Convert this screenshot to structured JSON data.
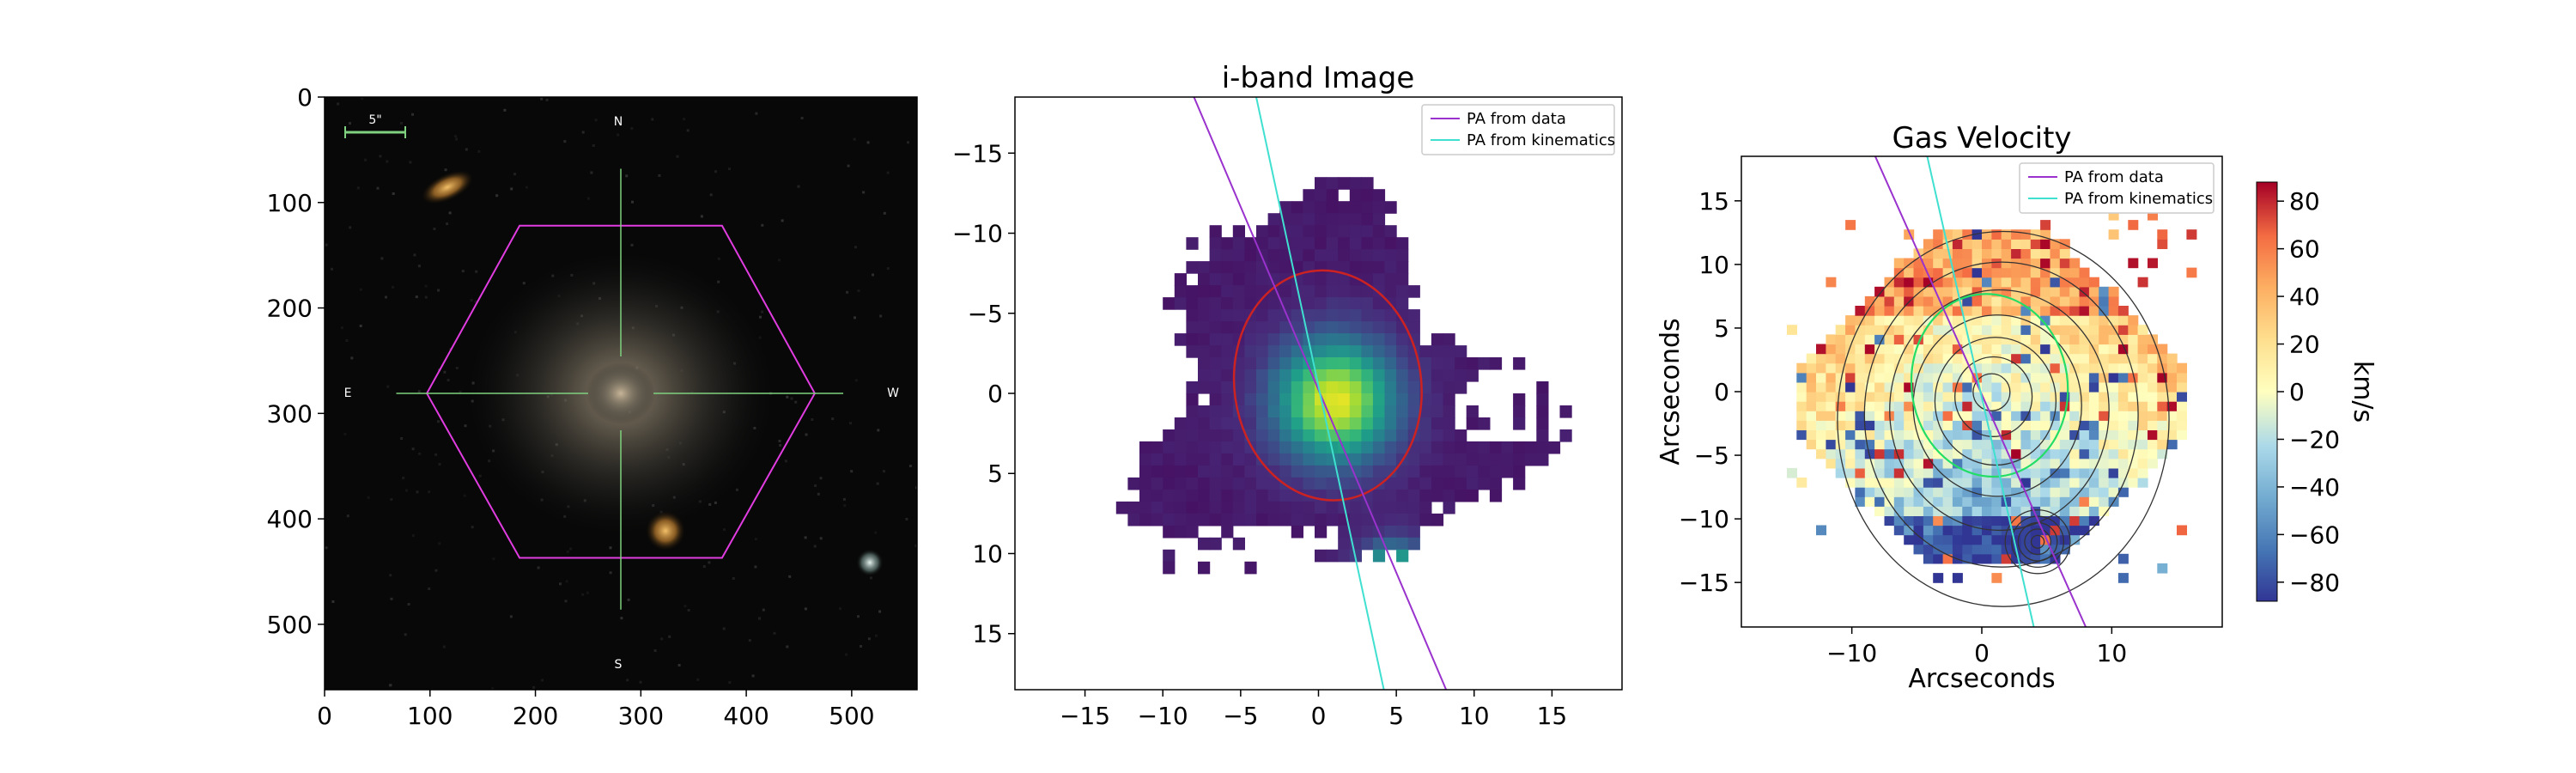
{
  "chart_data": [
    {
      "type": "image",
      "title": "",
      "xlabel": "",
      "ylabel": "",
      "xlim": [
        0,
        562
      ],
      "ylim": [
        562,
        0
      ],
      "xticks": [
        0,
        100,
        200,
        300,
        400,
        500
      ],
      "yticks": [
        0,
        100,
        200,
        300,
        400,
        500
      ],
      "scale_bar_label": "5\"",
      "compass": {
        "north": "N",
        "south": "S",
        "east": "E",
        "west": "W"
      },
      "galaxy_center": [
        281,
        281
      ],
      "ifu_hexagon": [
        [
          97,
          281
        ],
        [
          185,
          122
        ],
        [
          377,
          122
        ],
        [
          465,
          281
        ],
        [
          377,
          437
        ],
        [
          185,
          437
        ]
      ],
      "hexagon_color": "#e03ce0",
      "crosshair_color": "#7fd17f"
    },
    {
      "type": "heatmap",
      "title": "i-band Image",
      "xlabel": "",
      "ylabel": "",
      "xlim": [
        -19.5,
        19.5
      ],
      "ylim": [
        18.5,
        -18.5
      ],
      "xticks": [
        -15,
        -10,
        -5,
        0,
        5,
        10,
        15
      ],
      "yticks": [
        -15,
        -10,
        -5,
        0,
        5,
        10,
        15
      ],
      "legend": {
        "placement": "upper right",
        "entries": [
          {
            "label": "PA from data",
            "color": "#9a32cd"
          },
          {
            "label": "PA from kinematics",
            "color": "#40e0d0"
          }
        ]
      },
      "pa_data_line": [
        [
          -8.0,
          -18.5
        ],
        [
          8.2,
          18.5
        ]
      ],
      "pa_kinematics_line": [
        [
          -4.0,
          -18.5
        ],
        [
          4.2,
          18.5
        ]
      ],
      "ellipse": {
        "center": [
          0.6,
          -0.5
        ],
        "semi_x": 6.0,
        "semi_y": 7.2,
        "color": "#cc2222"
      },
      "colormap": "viridis"
    },
    {
      "type": "heatmap",
      "title": "Gas Velocity",
      "xlabel": "Arcseconds",
      "ylabel": "Arcseconds",
      "xlim": [
        -18.5,
        18.5
      ],
      "ylim": [
        -18.5,
        18.5
      ],
      "xticks": [
        -10,
        0,
        10
      ],
      "yticks": [
        -15,
        -10,
        -5,
        0,
        5,
        10,
        15
      ],
      "colorbar": {
        "label": "km/s",
        "range": [
          -88,
          88
        ],
        "ticks": [
          80,
          60,
          40,
          20,
          0,
          -20,
          -40,
          -60,
          -80
        ],
        "colormap": "RdYlBu_r"
      },
      "legend": {
        "placement": "upper right",
        "entries": [
          {
            "label": "PA from data",
            "color": "#9a32cd"
          },
          {
            "label": "PA from kinematics",
            "color": "#40e0d0"
          }
        ]
      },
      "pa_data_line": [
        [
          -8.2,
          18.5
        ],
        [
          8.0,
          -18.5
        ]
      ],
      "pa_kinematics_line": [
        [
          -4.2,
          18.5
        ],
        [
          4.0,
          -18.5
        ]
      ],
      "ellipse": {
        "center": [
          0.6,
          0.5
        ],
        "semi_x": 6.0,
        "semi_y": 7.2,
        "color": "#22dd66"
      },
      "contour_levels": 7
    }
  ]
}
